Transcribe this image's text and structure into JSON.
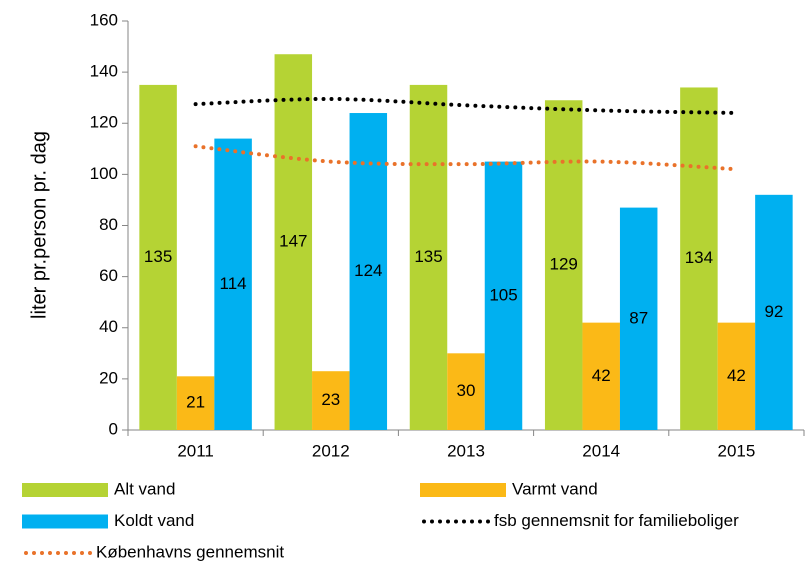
{
  "chart_data": {
    "type": "bar",
    "y_label": "liter pr.person pr. dag",
    "categories": [
      "2011",
      "2012",
      "2013",
      "2014",
      "2015"
    ],
    "ylim": [
      0,
      160
    ],
    "yticks": [
      0,
      20,
      40,
      60,
      80,
      100,
      120,
      140,
      160
    ],
    "series": [
      {
        "name": "Alt vand",
        "type": "bar",
        "color": "#b5d334",
        "values": [
          135,
          147,
          135,
          129,
          134
        ]
      },
      {
        "name": "Varmt vand",
        "type": "bar",
        "color": "#fbb917",
        "values": [
          21,
          23,
          30,
          42,
          42
        ]
      },
      {
        "name": "Koldt vand",
        "type": "bar",
        "color": "#00b0f0",
        "values": [
          114,
          124,
          105,
          87,
          92
        ]
      },
      {
        "name": "fsb gennemsnit for familieboliger",
        "type": "line",
        "color": "#000000",
        "values": [
          127.5,
          129.5,
          127,
          125,
          124
        ]
      },
      {
        "name": "Københavns gennemsnit",
        "type": "line",
        "color": "#e9722a",
        "values": [
          111,
          105,
          104,
          105,
          102
        ]
      }
    ]
  }
}
